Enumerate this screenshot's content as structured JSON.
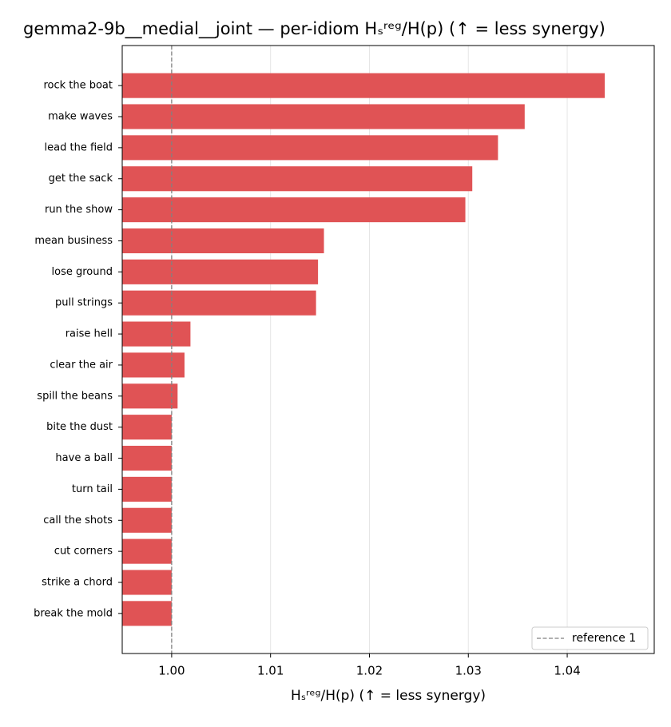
{
  "chart_data": {
    "type": "barh",
    "title": "gemma2-9b__medial__joint — per-idiom Hₛʳᵉᵍ/H(p)  (↑ = less synergy)",
    "xlabel": "Hₛʳᵉᵍ/H(p)  (↑ = less synergy)",
    "categories": [
      "rock the boat",
      "make waves",
      "lead the field",
      "get the sack",
      "run the show",
      "mean business",
      "lose ground",
      "pull strings",
      "raise hell",
      "clear the air",
      "spill the beans",
      "bite the dust",
      "have a ball",
      "turn tail",
      "call the shots",
      "cut corners",
      "strike a chord",
      "break the mold"
    ],
    "values": [
      1.0438,
      1.0357,
      1.033,
      1.0304,
      1.0297,
      1.0154,
      1.0148,
      1.0146,
      1.0019,
      1.0013,
      1.0006,
      1.0,
      1.0,
      1.0,
      1.0,
      1.0,
      1.0,
      1.0
    ],
    "color": "#e05355",
    "xlim": [
      0.995,
      1.0488
    ],
    "xticks": [
      {
        "value": 1.0,
        "label": "1.00"
      },
      {
        "value": 1.01,
        "label": "1.01"
      },
      {
        "value": 1.02,
        "label": "1.02"
      },
      {
        "value": 1.03,
        "label": "1.03"
      },
      {
        "value": 1.04,
        "label": "1.04"
      }
    ],
    "grid": true,
    "reference": {
      "value": 1,
      "label": "reference 1",
      "color": "#808080"
    },
    "legend": "lower right"
  }
}
